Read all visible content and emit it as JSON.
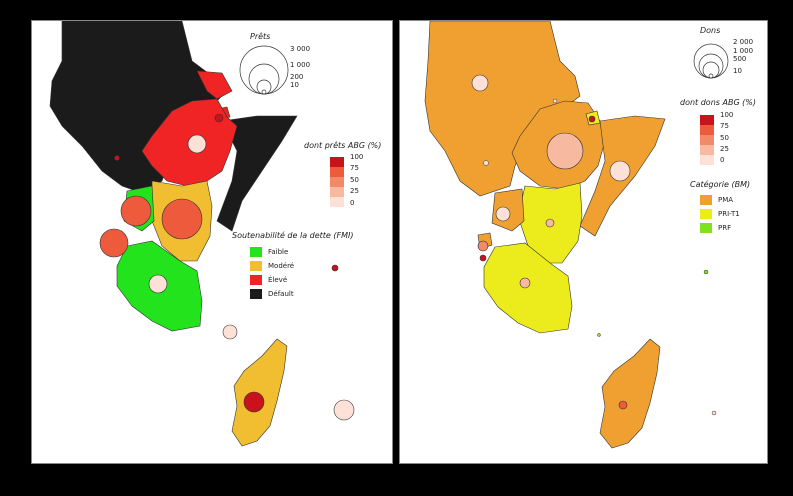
{
  "left_map": {
    "size_legend": {
      "title": "Prêts",
      "values": [
        "3 000",
        "1 000",
        "200",
        "10"
      ]
    },
    "share_legend": {
      "title": "dont prêts ABG (%)",
      "values": [
        "100",
        "75",
        "50",
        "25",
        "0"
      ],
      "colors": [
        "#c8121c",
        "#ee5a3c",
        "#f28a6a",
        "#f7b9a0",
        "#fde0d6"
      ]
    },
    "category_legend": {
      "title": "Soutenabilité de la dette (FMI)",
      "items": [
        {
          "label": "Faible",
          "color": "#22e31c"
        },
        {
          "label": "Modéré",
          "color": "#f0be30"
        },
        {
          "label": "Élevé",
          "color": "#f02424"
        },
        {
          "label": "Défault",
          "color": "#1b1b1b"
        }
      ]
    }
  },
  "right_map": {
    "size_legend": {
      "title": "Dons",
      "values": [
        "2 000",
        "1 000",
        "500",
        "10"
      ]
    },
    "share_legend": {
      "title": "dont dons ABG (%)",
      "values": [
        "100",
        "75",
        "50",
        "25",
        "0"
      ],
      "colors": [
        "#c8121c",
        "#ee5a3c",
        "#f28a6a",
        "#f7b9a0",
        "#fde0d6"
      ]
    },
    "category_legend": {
      "title": "Catégorie (BM)",
      "items": [
        {
          "label": "PMA",
          "color": "#f0a030"
        },
        {
          "label": "PRI-T1",
          "color": "#ecec1c"
        },
        {
          "label": "PRF",
          "color": "#7fe21c"
        }
      ]
    }
  }
}
